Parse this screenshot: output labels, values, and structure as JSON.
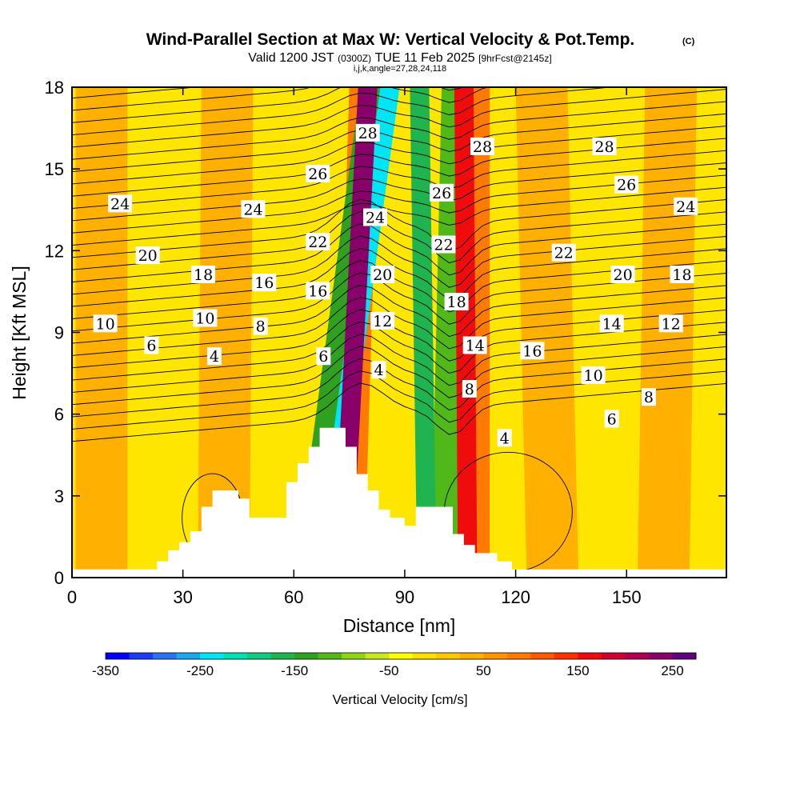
{
  "title": "Wind-Parallel Section at Max W: Vertical Velocity & Pot.Temp.",
  "copyright_mark": "(C)",
  "subtitle": {
    "valid": "Valid 1200 JST",
    "utc": "(0300Z)",
    "date": "TUE 11 Feb 2025",
    "forecast": "[9hrFcst@2145z]"
  },
  "indices": "i,j,k,angle=27,28,24,118",
  "chart_data": {
    "type": "heatmap",
    "title": "Wind-Parallel Section at Max W: Vertical Velocity & Pot.Temp.",
    "xlabel": "Distance [nm]",
    "ylabel": "Height [Kft MSL]",
    "xlim": [
      0,
      177
    ],
    "ylim": [
      0,
      18
    ],
    "x_ticks": [
      0,
      30,
      60,
      90,
      120,
      150
    ],
    "y_ticks": [
      0,
      3,
      6,
      9,
      12,
      15,
      18
    ],
    "colorbar": {
      "label": "Vertical Velocity [cm/s]",
      "range": [
        -350,
        275
      ],
      "tick_values": [
        -350,
        -250,
        -150,
        -50,
        50,
        150,
        250
      ],
      "tick_labels": [
        "-350",
        "-250",
        "-150",
        "-50",
        "50",
        "150",
        "250"
      ],
      "colors": [
        "#0000ff",
        "#1a3ef5",
        "#2a73f0",
        "#1ba8ee",
        "#00e5f5",
        "#00e0b0",
        "#10cc80",
        "#20b450",
        "#30a020",
        "#50b818",
        "#90d418",
        "#c8e820",
        "#ffff00",
        "#ffe000",
        "#ffc800",
        "#ffb000",
        "#ff9600",
        "#ff7a00",
        "#ff5800",
        "#ff3000",
        "#f00c0c",
        "#d00030",
        "#b00050",
        "#8a006a",
        "#600080"
      ]
    },
    "terrain": [
      [
        0,
        0.3
      ],
      [
        23,
        0.3
      ],
      [
        23,
        0.6
      ],
      [
        26,
        0.6
      ],
      [
        26,
        1
      ],
      [
        29,
        1
      ],
      [
        29,
        1.3
      ],
      [
        32,
        1.3
      ],
      [
        32,
        1.7
      ],
      [
        35,
        1.7
      ],
      [
        35,
        2.6
      ],
      [
        38,
        2.6
      ],
      [
        38,
        3.2
      ],
      [
        45,
        3.2
      ],
      [
        45,
        2.9
      ],
      [
        48,
        2.9
      ],
      [
        48,
        2.2
      ],
      [
        58,
        2.2
      ],
      [
        58,
        3.5
      ],
      [
        61,
        3.5
      ],
      [
        61,
        4.2
      ],
      [
        64,
        4.2
      ],
      [
        64,
        4.8
      ],
      [
        67,
        4.8
      ],
      [
        67,
        5.5
      ],
      [
        74,
        5.5
      ],
      [
        74,
        4.8
      ],
      [
        77,
        4.8
      ],
      [
        77,
        3.8
      ],
      [
        80,
        3.8
      ],
      [
        80,
        3.2
      ],
      [
        83,
        3.2
      ],
      [
        83,
        2.5
      ],
      [
        86,
        2.5
      ],
      [
        86,
        2.2
      ],
      [
        90,
        2.2
      ],
      [
        90,
        1.9
      ],
      [
        93,
        1.9
      ],
      [
        93,
        2.6
      ],
      [
        103,
        2.6
      ],
      [
        103,
        1.6
      ],
      [
        106,
        1.6
      ],
      [
        106,
        1.2
      ],
      [
        109,
        1.2
      ],
      [
        109,
        0.9
      ],
      [
        115,
        0.9
      ],
      [
        115,
        0.6
      ],
      [
        119,
        0.6
      ],
      [
        119,
        0.3
      ],
      [
        177,
        0.3
      ]
    ],
    "w_features": [
      {
        "x": 64,
        "top_x": 82,
        "w": -130
      },
      {
        "x": 68,
        "top_x": 86,
        "w": -230
      },
      {
        "x": 73,
        "top_x": 80,
        "w": 230
      },
      {
        "x": 75,
        "top_x": 79,
        "w": 80
      },
      {
        "x": 96,
        "top_x": 94,
        "w": -160
      },
      {
        "x": 101,
        "top_x": 104,
        "w": -110
      },
      {
        "x": 107,
        "top_x": 106,
        "w": 170
      },
      {
        "x": 109,
        "top_x": 109,
        "w": 90
      },
      {
        "x": 41,
        "top_x": 42,
        "w": 40
      },
      {
        "x": 130,
        "top_x": 127,
        "w": 40
      },
      {
        "x": 160,
        "top_x": 162,
        "w": 45
      },
      {
        "x": 8,
        "top_x": 8,
        "w": 35
      }
    ],
    "theta_contour_labels": [
      {
        "text": "4",
        "x": 38.5,
        "y": 8.1
      },
      {
        "text": "6",
        "x": 21.5,
        "y": 8.5
      },
      {
        "text": "10",
        "x": 9,
        "y": 9.3
      },
      {
        "text": "10",
        "x": 36,
        "y": 9.5
      },
      {
        "text": "8",
        "x": 51,
        "y": 9.2
      },
      {
        "text": "18",
        "x": 35.5,
        "y": 11.1
      },
      {
        "text": "16",
        "x": 52,
        "y": 10.8
      },
      {
        "text": "16",
        "x": 66.5,
        "y": 10.5
      },
      {
        "text": "20",
        "x": 20.5,
        "y": 11.8
      },
      {
        "text": "22",
        "x": 66.5,
        "y": 12.3
      },
      {
        "text": "24",
        "x": 13,
        "y": 13.7
      },
      {
        "text": "24",
        "x": 49,
        "y": 13.5
      },
      {
        "text": "26",
        "x": 66.5,
        "y": 14.8
      },
      {
        "text": "28",
        "x": 80,
        "y": 16.3
      },
      {
        "text": "24",
        "x": 82,
        "y": 13.2
      },
      {
        "text": "20",
        "x": 84,
        "y": 11.1
      },
      {
        "text": "12",
        "x": 84,
        "y": 9.4
      },
      {
        "text": "4",
        "x": 83,
        "y": 7.6
      },
      {
        "text": "6",
        "x": 68,
        "y": 8.1
      },
      {
        "text": "26",
        "x": 100,
        "y": 14.1
      },
      {
        "text": "28",
        "x": 111,
        "y": 15.8
      },
      {
        "text": "22",
        "x": 100.5,
        "y": 12.2
      },
      {
        "text": "18",
        "x": 104,
        "y": 10.1
      },
      {
        "text": "14",
        "x": 109,
        "y": 8.5
      },
      {
        "text": "8",
        "x": 107.5,
        "y": 6.9
      },
      {
        "text": "16",
        "x": 124.5,
        "y": 8.3
      },
      {
        "text": "4",
        "x": 117,
        "y": 5.1
      },
      {
        "text": "22",
        "x": 133,
        "y": 11.9
      },
      {
        "text": "28",
        "x": 144,
        "y": 15.8
      },
      {
        "text": "26",
        "x": 150,
        "y": 14.4
      },
      {
        "text": "24",
        "x": 166,
        "y": 13.6
      },
      {
        "text": "20",
        "x": 149,
        "y": 11.1
      },
      {
        "text": "18",
        "x": 165,
        "y": 11.1
      },
      {
        "text": "14",
        "x": 146,
        "y": 9.3
      },
      {
        "text": "12",
        "x": 162,
        "y": 9.3
      },
      {
        "text": "10",
        "x": 141,
        "y": 7.4
      },
      {
        "text": "8",
        "x": 156,
        "y": 6.6
      },
      {
        "text": "6",
        "x": 146,
        "y": 5.8
      }
    ],
    "colors": {
      "background_field": "#ffe600",
      "contour": "#000000",
      "terrain_fill": "#ffffff"
    }
  }
}
